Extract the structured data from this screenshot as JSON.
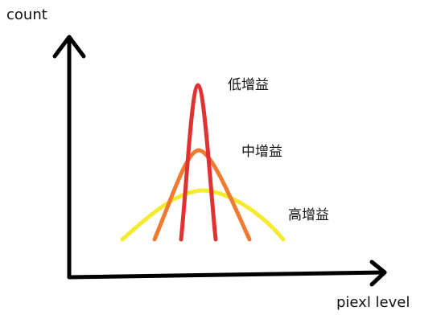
{
  "axes": {
    "y_label": "count",
    "x_label": "piexl level",
    "color": "#000000"
  },
  "curves": [
    {
      "label": "低增益",
      "color": "#e03232"
    },
    {
      "label": "中增益",
      "color": "#f07a30"
    },
    {
      "label": "高增益",
      "color": "#f5ea2f"
    }
  ]
}
